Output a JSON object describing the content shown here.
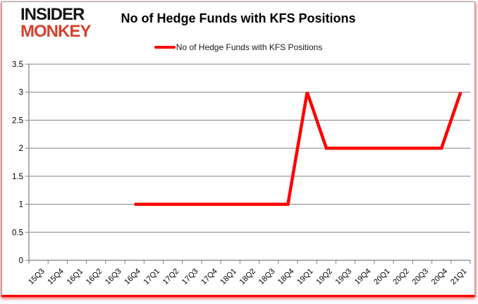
{
  "branding": {
    "logo_line1": "INSIDER",
    "logo_line2": "MONKEY",
    "logo_color1": "#141414",
    "logo_color2": "#d5422f"
  },
  "chart_data": {
    "type": "line",
    "title": "No of Hedge Funds with KFS Positions",
    "xlabel": "",
    "ylabel": "",
    "categories": [
      "15Q3",
      "15Q4",
      "16Q1",
      "16Q2",
      "16Q3",
      "16Q4",
      "17Q1",
      "17Q2",
      "17Q3",
      "17Q4",
      "18Q1",
      "18Q2",
      "18Q3",
      "18Q4",
      "19Q1",
      "19Q2",
      "19Q3",
      "19Q4",
      "20Q1",
      "20Q2",
      "20Q3",
      "20Q4",
      "21Q1"
    ],
    "series": [
      {
        "name": "No of Hedge Funds with KFS Positions",
        "color": "#fe0000",
        "values": [
          null,
          null,
          null,
          null,
          null,
          1,
          1,
          1,
          1,
          1,
          1,
          1,
          1,
          1,
          3,
          2,
          2,
          2,
          2,
          2,
          2,
          2,
          3
        ]
      }
    ],
    "ylim": [
      0,
      3.5
    ],
    "ytick_labels": [
      "0",
      "0.5",
      "1",
      "1.5",
      "2",
      "2.5",
      "3",
      "3.5"
    ],
    "grid": true,
    "legend_position": "top-center",
    "colors": {
      "line": "#fe0000",
      "gridline": "#808080",
      "axis": "#808080",
      "tick_label": "#000000",
      "frame_border": "#9a9a9a",
      "highlight_border": "#fb0102"
    }
  }
}
